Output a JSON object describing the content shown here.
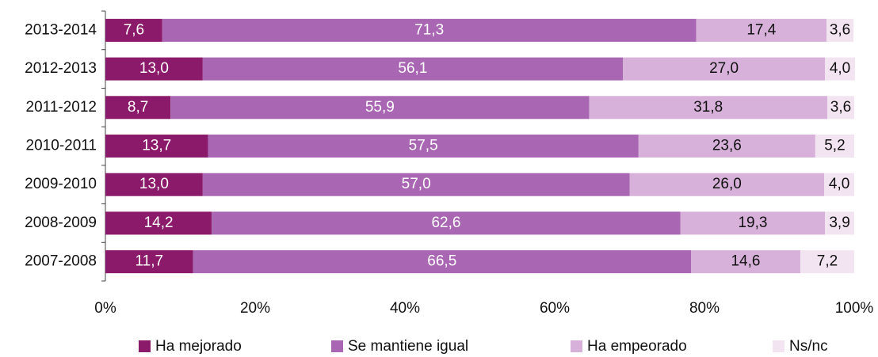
{
  "chart_data": {
    "type": "stacked-bar-horizontal",
    "categories": [
      "2013-2014",
      "2012-2013",
      "2011-2012",
      "2010-2011",
      "2009-2010",
      "2008-2009",
      "2007-2008"
    ],
    "series": [
      {
        "name": "Ha mejorado",
        "color": "#8b1a6b",
        "values": [
          7.6,
          13.0,
          8.7,
          13.7,
          13.0,
          14.2,
          11.7
        ],
        "value_labels": [
          "7,6",
          "13,0",
          "8,7",
          "13,7",
          "13,0",
          "14,2",
          "11,7"
        ]
      },
      {
        "name": "Se mantiene igual",
        "color": "#a967b3",
        "values": [
          71.3,
          56.1,
          55.9,
          57.5,
          57.0,
          62.6,
          66.5
        ],
        "value_labels": [
          "71,3",
          "56,1",
          "55,9",
          "57,5",
          "57,0",
          "62,6",
          "66,5"
        ]
      },
      {
        "name": "Ha empeorado",
        "color": "#d7b1da",
        "values": [
          17.4,
          27.0,
          31.8,
          23.6,
          26.0,
          19.3,
          14.6
        ],
        "value_labels": [
          "17,4",
          "27,0",
          "31,8",
          "23,6",
          "26,0",
          "19,3",
          "14,6"
        ]
      },
      {
        "name": "Ns/nc",
        "color": "#f3e4f1",
        "values": [
          3.6,
          4.0,
          3.6,
          5.2,
          4.0,
          3.9,
          7.2
        ],
        "value_labels": [
          "3,6",
          "4,0",
          "3,6",
          "5,2",
          "4,0",
          "3,9",
          "7,2"
        ]
      }
    ],
    "xlim": [
      0,
      100
    ],
    "xticks": [
      {
        "value": 0,
        "label": "0%"
      },
      {
        "value": 20,
        "label": "20%"
      },
      {
        "value": 40,
        "label": "40%"
      },
      {
        "value": 60,
        "label": "60%"
      },
      {
        "value": 80,
        "label": "80%"
      },
      {
        "value": 100,
        "label": "100%"
      }
    ],
    "legend": "bottom"
  }
}
